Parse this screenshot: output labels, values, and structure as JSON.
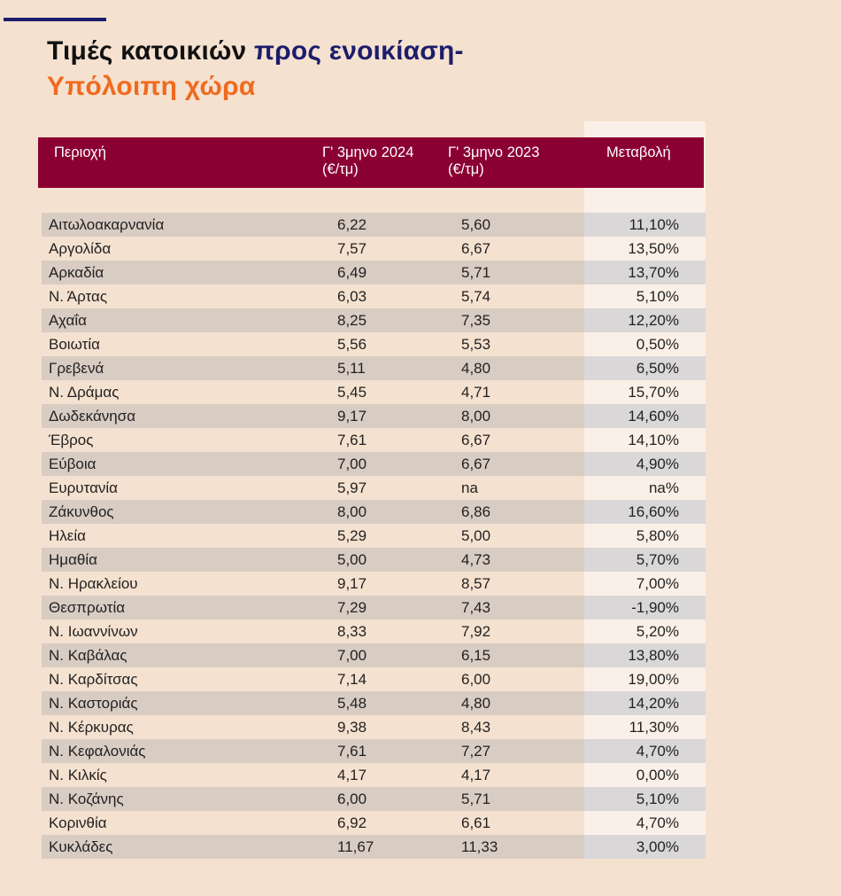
{
  "title": {
    "part1": "Τιμές κατοικιών ",
    "part2": "προς ενοικίαση-",
    "part3": "Υπόλοιπη χώρα"
  },
  "table": {
    "headers": {
      "region": "Περιοχή",
      "q2024_line1": "Γ' 3μηνο 2024",
      "q2024_line2": "(€/τμ)",
      "q2023_line1": "Γ' 3μηνο 2023",
      "q2023_line2": "(€/τμ)",
      "change": "Μεταβολή"
    },
    "rows": [
      {
        "region": "Αιτωλοακαρνανία",
        "q2024": "6,22",
        "q2023": "5,60",
        "change": "11,10%"
      },
      {
        "region": "Αργολίδα",
        "q2024": "7,57",
        "q2023": "6,67",
        "change": "13,50%"
      },
      {
        "region": "Αρκαδία",
        "q2024": "6,49",
        "q2023": "5,71",
        "change": "13,70%"
      },
      {
        "region": "Ν. Άρτας",
        "q2024": "6,03",
        "q2023": "5,74",
        "change": "5,10%"
      },
      {
        "region": "Αχαΐα",
        "q2024": "8,25",
        "q2023": "7,35",
        "change": "12,20%"
      },
      {
        "region": "Βοιωτία",
        "q2024": "5,56",
        "q2023": "5,53",
        "change": "0,50%"
      },
      {
        "region": "Γρεβενά",
        "q2024": "5,11",
        "q2023": "4,80",
        "change": "6,50%"
      },
      {
        "region": "Ν. Δράμας",
        "q2024": "5,45",
        "q2023": "4,71",
        "change": "15,70%"
      },
      {
        "region": "Δωδεκάνησα",
        "q2024": "9,17",
        "q2023": "8,00",
        "change": "14,60%"
      },
      {
        "region": "Έβρος",
        "q2024": "7,61",
        "q2023": "6,67",
        "change": "14,10%"
      },
      {
        "region": "Εύβοια",
        "q2024": "7,00",
        "q2023": "6,67",
        "change": "4,90%"
      },
      {
        "region": "Ευρυτανία",
        "q2024": "5,97",
        "q2023": "na",
        "change": "na%"
      },
      {
        "region": "Ζάκυνθος",
        "q2024": "8,00",
        "q2023": "6,86",
        "change": "16,60%"
      },
      {
        "region": "Ηλεία",
        "q2024": "5,29",
        "q2023": "5,00",
        "change": "5,80%"
      },
      {
        "region": "Ημαθία",
        "q2024": "5,00",
        "q2023": "4,73",
        "change": "5,70%"
      },
      {
        "region": "Ν. Ηρακλείου",
        "q2024": "9,17",
        "q2023": "8,57",
        "change": "7,00%"
      },
      {
        "region": "Θεσπρωτία",
        "q2024": "7,29",
        "q2023": "7,43",
        "change": "-1,90%"
      },
      {
        "region": "Ν. Ιωαννίνων",
        "q2024": "8,33",
        "q2023": "7,92",
        "change": "5,20%"
      },
      {
        "region": "Ν. Καβάλας",
        "q2024": "7,00",
        "q2023": "6,15",
        "change": "13,80%"
      },
      {
        "region": "Ν. Καρδίτσας",
        "q2024": "7,14",
        "q2023": "6,00",
        "change": "19,00%"
      },
      {
        "region": "Ν. Καστοριάς",
        "q2024": "5,48",
        "q2023": "4,80",
        "change": "14,20%"
      },
      {
        "region": "Ν. Κέρκυρας",
        "q2024": "9,38",
        "q2023": "8,43",
        "change": "11,30%"
      },
      {
        "region": "Ν. Κεφαλονιάς",
        "q2024": "7,61",
        "q2023": "7,27",
        "change": "4,70%"
      },
      {
        "region": "Ν. Κιλκίς",
        "q2024": "4,17",
        "q2023": "4,17",
        "change": "0,00%"
      },
      {
        "region": "Ν. Κοζάνης",
        "q2024": "6,00",
        "q2023": "5,71",
        "change": "5,10%"
      },
      {
        "region": "Κορινθία",
        "q2024": "6,92",
        "q2023": "6,61",
        "change": "4,70%"
      },
      {
        "region": "Κυκλάδες",
        "q2024": "11,67",
        "q2023": "11,33",
        "change": "3,00%"
      }
    ]
  },
  "colors": {
    "background": "#f5e1cf",
    "header": "#8b0032",
    "title_navy": "#1c1d6b",
    "title_orange": "#ef6a1f",
    "row_shade": "#d9ccc3"
  }
}
